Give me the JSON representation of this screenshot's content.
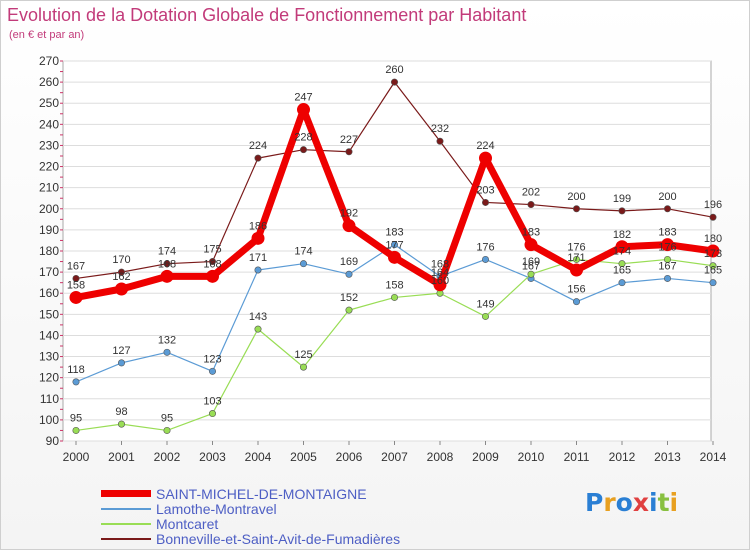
{
  "header": {
    "title": "Evolution de la Dotation Globale de Fonctionnement par Habitant",
    "subtitle": "(en € et par an)"
  },
  "logo": {
    "text": "Proxiti"
  },
  "chart_data": {
    "type": "line",
    "title": "Evolution de la Dotation Globale de Fonctionnement par Habitant",
    "subtitle": "(en € et par an)",
    "xlabel": "",
    "ylabel": "",
    "categories": [
      "2000",
      "2001",
      "2002",
      "2003",
      "2004",
      "2005",
      "2006",
      "2007",
      "2008",
      "2009",
      "2010",
      "2011",
      "2012",
      "2013",
      "2014"
    ],
    "ylim": [
      90,
      270
    ],
    "yticks": [
      90,
      100,
      110,
      120,
      130,
      140,
      150,
      160,
      170,
      180,
      190,
      200,
      210,
      220,
      230,
      240,
      250,
      260,
      270
    ],
    "grid": "horizontal",
    "legend_position": "bottom-left",
    "series": [
      {
        "name": "SAINT-MICHEL-DE-MONTAIGNE",
        "color": "#ee0000",
        "values": [
          158,
          162,
          168,
          168,
          186,
          247,
          192,
          177,
          164,
          224,
          183,
          171,
          182,
          183,
          180
        ]
      },
      {
        "name": "Lamothe-Montravel",
        "color": "#5b9bd5",
        "values": [
          118,
          127,
          132,
          123,
          171,
          174,
          169,
          183,
          168,
          176,
          167,
          156,
          165,
          167,
          165
        ]
      },
      {
        "name": "Montcaret",
        "color": "#99dd55",
        "values": [
          95,
          98,
          95,
          103,
          143,
          125,
          152,
          158,
          160,
          149,
          169,
          176,
          174,
          176,
          173
        ]
      },
      {
        "name": "Bonneville-et-Saint-Avit-de-Fumadières",
        "color": "#7a1a1a",
        "values": [
          167,
          170,
          174,
          175,
          224,
          228,
          227,
          260,
          232,
          203,
          202,
          200,
          199,
          200,
          196
        ]
      }
    ]
  }
}
